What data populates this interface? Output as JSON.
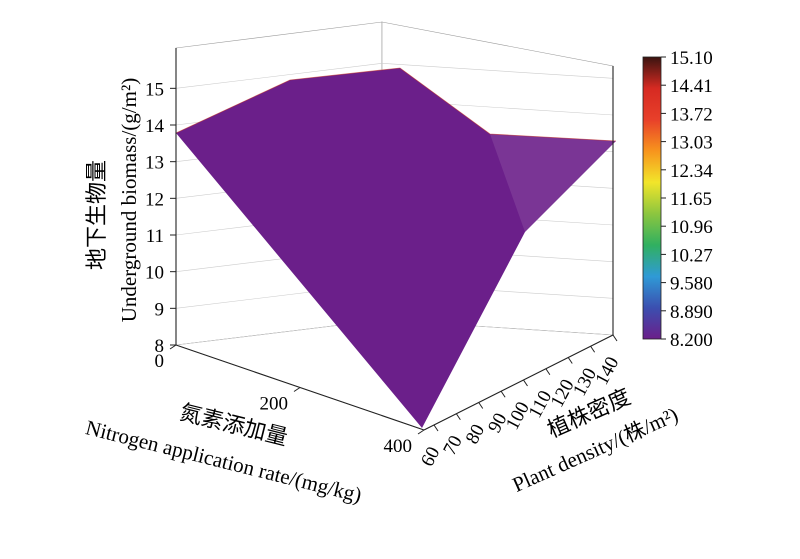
{
  "chart_data": {
    "type": "surface3d",
    "x_axis": {
      "label_cn": "氮素添加量",
      "label_en": "Nitrogen application rate/(mg/kg)",
      "ticks": [
        "0",
        "200",
        "400"
      ],
      "range": [
        0,
        400
      ]
    },
    "y_axis": {
      "label_cn": "植株密度",
      "label_en": "Plant density/(株/m²)",
      "ticks": [
        "60",
        "70",
        "80",
        "90",
        "100",
        "110",
        "120",
        "130",
        "140"
      ],
      "range": [
        60,
        140
      ]
    },
    "z_axis": {
      "label_cn": "地下生物量",
      "label_en": "Underground biomass/(g/m²)",
      "ticks": [
        "8",
        "9",
        "10",
        "11",
        "12",
        "13",
        "14",
        "15"
      ],
      "range": [
        8,
        15.5
      ]
    },
    "surface_points": [
      {
        "nitrogen": 0,
        "density": 140,
        "biomass": 13.5
      },
      {
        "nitrogen": 100,
        "density": 140,
        "biomass": 14.8
      },
      {
        "nitrogen": 200,
        "density": 140,
        "biomass": 15.1
      },
      {
        "nitrogen": 400,
        "density": 140,
        "biomass": 13.5
      },
      {
        "nitrogen": 400,
        "density": 60,
        "biomass": 8.2
      },
      {
        "nitrogen": 400,
        "density": 100,
        "biomass": 11.0
      }
    ],
    "colorbar": {
      "labels": [
        "15.10",
        "14.41",
        "13.72",
        "13.03",
        "12.34",
        "11.65",
        "10.96",
        "10.27",
        "9.580",
        "8.890",
        "8.200"
      ],
      "min": 8.2,
      "max": 15.1,
      "colors": [
        "#6b1f8a",
        "#3b4fb0",
        "#2f9ad6",
        "#30b060",
        "#8cc63f",
        "#f2e52a",
        "#f7941d",
        "#e8402a",
        "#d62a22",
        "#3a1410"
      ]
    }
  }
}
